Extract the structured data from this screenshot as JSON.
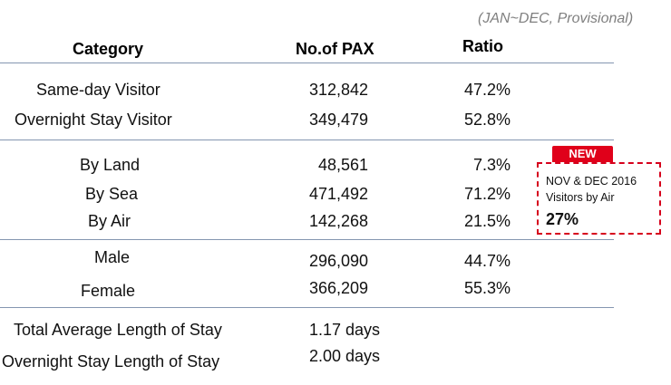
{
  "subtitle": "(JAN~DEC, Provisional)",
  "headers": {
    "category": "Category",
    "pax": "No.of PAX",
    "ratio": "Ratio"
  },
  "rows": [
    {
      "label": "Same-day Visitor",
      "pax": "312,842",
      "ratio": "47.2%"
    },
    {
      "label": "Overnight Stay Visitor",
      "pax": "349,479",
      "ratio": "52.8%"
    },
    {
      "label": "By Land",
      "pax": "48,561",
      "ratio": "7.3%"
    },
    {
      "label": "By Sea",
      "pax": "471,492",
      "ratio": "71.2%"
    },
    {
      "label": "By Air",
      "pax": "142,268",
      "ratio": "21.5%"
    },
    {
      "label": "Male",
      "pax": "296,090",
      "ratio": "44.7%"
    },
    {
      "label": "Female",
      "pax": "366,209",
      "ratio": "55.3%"
    }
  ],
  "stays": [
    {
      "label": "Total Average Length of Stay",
      "value": "1.17 days"
    },
    {
      "label": "Overnight Stay Length of Stay",
      "value": "2.00 days"
    }
  ],
  "callout": {
    "badge": "NEW",
    "line1": "NOV & DEC 2016",
    "line2": "Visitors by Air",
    "value": "27%"
  },
  "colors": {
    "rule": "#8496b0",
    "badge": "#e0001a",
    "callout_border": "#d6001c",
    "subtitle": "#7f7f7f"
  }
}
